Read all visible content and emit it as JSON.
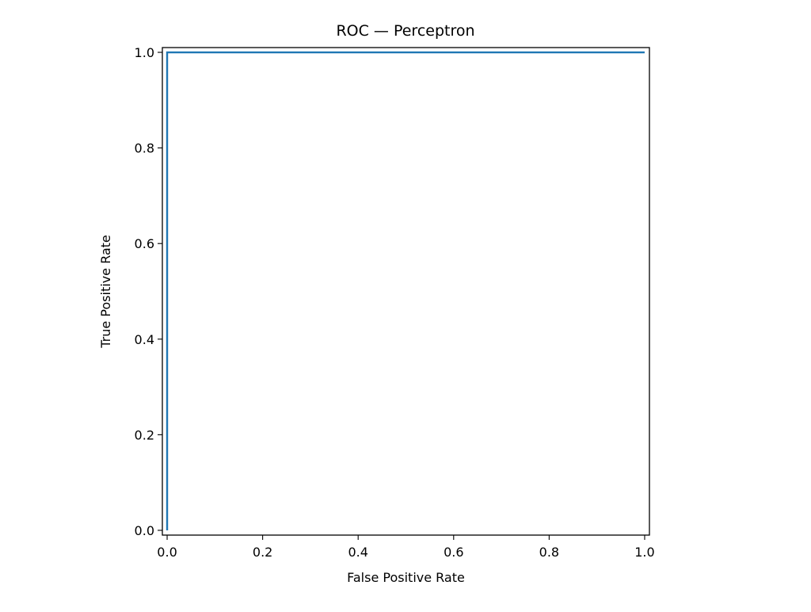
{
  "chart_data": {
    "type": "line",
    "title": "ROC — Perceptron",
    "xlabel": "False Positive Rate",
    "ylabel": "True Positive Rate",
    "xlim": [
      -0.01,
      1.01
    ],
    "ylim": [
      -0.01,
      1.01
    ],
    "x_ticks": [
      0.0,
      0.2,
      0.4,
      0.6,
      0.8,
      1.0
    ],
    "x_tick_labels": [
      "0.0",
      "0.2",
      "0.4",
      "0.6",
      "0.8",
      "1.0"
    ],
    "y_ticks": [
      0.0,
      0.2,
      0.4,
      0.6,
      0.8,
      1.0
    ],
    "y_tick_labels": [
      "0.0",
      "0.2",
      "0.4",
      "0.6",
      "0.8",
      "1.0"
    ],
    "grid": false,
    "series": [
      {
        "color": "#1f77b4",
        "x": [
          0.0,
          0.0,
          1.0
        ],
        "y": [
          0.0,
          1.0,
          1.0
        ]
      }
    ]
  }
}
